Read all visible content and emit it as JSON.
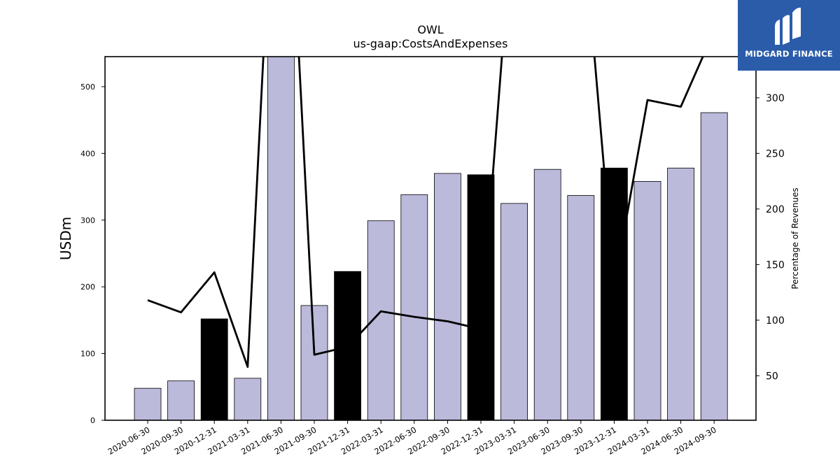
{
  "chart_data": {
    "type": "bar",
    "title": "OWL",
    "subtitle": "us-gaap:CostsAndExpenses",
    "ylabel": "USDm",
    "y2label": "Percentage of Revenues",
    "ylim": [
      0,
      545
    ],
    "y2lim": [
      10,
      337
    ],
    "yticks": [
      0,
      100,
      200,
      300,
      400,
      500
    ],
    "y2ticks": [
      50,
      100,
      150,
      200,
      250,
      300
    ],
    "categories": [
      "2020-06-30",
      "2020-09-30",
      "2020-12-31",
      "2021-03-31",
      "2021-06-30",
      "2021-09-30",
      "2021-12-31",
      "2022-03-31",
      "2022-06-30",
      "2022-09-30",
      "2022-12-31",
      "2023-03-31",
      "2023-06-30",
      "2023-09-30",
      "2023-12-31",
      "2024-03-31",
      "2024-06-30",
      "2024-09-30"
    ],
    "values": [
      48,
      59,
      152,
      63,
      548,
      172,
      223,
      299,
      338,
      370,
      368,
      325,
      376,
      337,
      378,
      358,
      378,
      461
    ],
    "highlight": [
      false,
      false,
      true,
      false,
      false,
      false,
      true,
      false,
      false,
      false,
      true,
      false,
      false,
      false,
      true,
      false,
      false,
      false
    ],
    "bar_color": "#bcbadb",
    "highlight_color": "#000000",
    "line_values": [
      118,
      107,
      143,
      58,
      650,
      69,
      76,
      108,
      103,
      99,
      92,
      480,
      520,
      480,
      130,
      298,
      292,
      360
    ],
    "line_color": "#000000",
    "grid": false
  },
  "logo": {
    "text": "MIDGARD FINANCE",
    "color": "#2a5caa"
  }
}
